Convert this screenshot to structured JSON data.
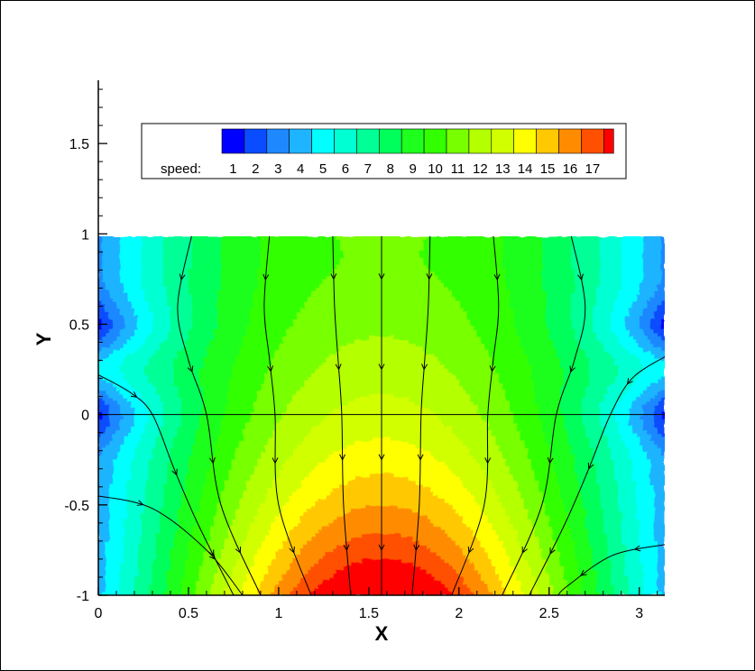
{
  "chart_data": {
    "type": "heatmap",
    "xlabel": "X",
    "ylabel": "Y",
    "xlim": [
      0,
      3.1416
    ],
    "ylim": [
      -1,
      1.85
    ],
    "data_ylim": [
      -1,
      1
    ],
    "x_ticks": [
      "0",
      "0.5",
      "1",
      "1.5",
      "2",
      "2.5",
      "3"
    ],
    "x_tick_values": [
      0,
      0.5,
      1,
      1.5,
      2,
      2.5,
      3
    ],
    "y_ticks": [
      "-1",
      "-0.5",
      "0",
      "0.5",
      "1",
      "1.5"
    ],
    "y_tick_values": [
      -1,
      -0.5,
      0,
      0.5,
      1,
      1.5
    ],
    "colorbar": {
      "label": "speed:",
      "levels": [
        "1",
        "2",
        "3",
        "4",
        "5",
        "6",
        "7",
        "8",
        "9",
        "10",
        "11",
        "12",
        "13",
        "14",
        "15",
        "16",
        "17"
      ],
      "colors": [
        "#0000ff",
        "#0a4cff",
        "#1e88ff",
        "#1eb4ff",
        "#00ffff",
        "#00ffd2",
        "#00ff96",
        "#00ff5a",
        "#1eff1e",
        "#32ff00",
        "#78ff00",
        "#b4ff00",
        "#d2ff00",
        "#ffff00",
        "#ffc800",
        "#ff8c00",
        "#ff5000",
        "#ff0000"
      ]
    },
    "speed_field": {
      "x_symmetry_center": 1.5708,
      "min_speed": 1,
      "max_speed": 17.5,
      "min_locations": [
        [
          0,
          0.5
        ],
        [
          0,
          0
        ],
        [
          3.1416,
          0.5
        ],
        [
          3.1416,
          0
        ]
      ],
      "max_location": [
        1.5708,
        -1
      ]
    },
    "streamlines": [
      {
        "points": [
          [
            0.52,
            1.0
          ],
          [
            0.44,
            0.6
          ],
          [
            0.5,
            0.3
          ],
          [
            0.6,
            0.0
          ],
          [
            0.68,
            -0.5
          ],
          [
            0.9,
            -1.0
          ]
        ]
      },
      {
        "points": [
          [
            0.95,
            1.0
          ],
          [
            0.92,
            0.6
          ],
          [
            0.95,
            0.3
          ],
          [
            0.98,
            0.0
          ],
          [
            1.0,
            -0.5
          ],
          [
            1.18,
            -1.0
          ]
        ]
      },
      {
        "points": [
          [
            1.3,
            1.0
          ],
          [
            1.31,
            0.6
          ],
          [
            1.33,
            0.3
          ],
          [
            1.35,
            0.0
          ],
          [
            1.36,
            -0.5
          ],
          [
            1.4,
            -1.0
          ]
        ]
      },
      {
        "points": [
          [
            1.5708,
            1.0
          ],
          [
            1.5708,
            0.0
          ],
          [
            1.5708,
            -1.0
          ]
        ]
      },
      {
        "points": [
          [
            1.84,
            1.0
          ],
          [
            1.83,
            0.6
          ],
          [
            1.81,
            0.3
          ],
          [
            1.79,
            0.0
          ],
          [
            1.78,
            -0.5
          ],
          [
            1.74,
            -1.0
          ]
        ]
      },
      {
        "points": [
          [
            2.19,
            1.0
          ],
          [
            2.22,
            0.6
          ],
          [
            2.19,
            0.3
          ],
          [
            2.16,
            0.0
          ],
          [
            2.14,
            -0.5
          ],
          [
            1.96,
            -1.0
          ]
        ]
      },
      {
        "points": [
          [
            2.62,
            1.0
          ],
          [
            2.7,
            0.6
          ],
          [
            2.64,
            0.3
          ],
          [
            2.54,
            0.0
          ],
          [
            2.46,
            -0.5
          ],
          [
            2.24,
            -1.0
          ]
        ]
      },
      {
        "points": [
          [
            0.0,
            0.22
          ],
          [
            0.18,
            0.12
          ],
          [
            0.3,
            0.0
          ],
          [
            0.42,
            -0.3
          ],
          [
            0.55,
            -0.6
          ],
          [
            0.75,
            -1.0
          ]
        ]
      },
      {
        "points": [
          [
            0.0,
            -0.45
          ],
          [
            0.3,
            -0.52
          ],
          [
            0.6,
            -0.75
          ],
          [
            0.8,
            -1.0
          ]
        ]
      },
      {
        "points": [
          [
            3.1416,
            0.32
          ],
          [
            2.96,
            0.2
          ],
          [
            2.84,
            0.0
          ],
          [
            2.72,
            -0.3
          ],
          [
            2.59,
            -0.6
          ],
          [
            2.39,
            -1.0
          ]
        ]
      },
      {
        "points": [
          [
            3.1416,
            -0.72
          ],
          [
            2.85,
            -0.78
          ],
          [
            2.6,
            -0.95
          ],
          [
            2.55,
            -1.0
          ]
        ]
      },
      {
        "points": [
          [
            0.0,
            0.0
          ],
          [
            3.1416,
            0.0
          ]
        ],
        "arrows": false
      }
    ]
  }
}
